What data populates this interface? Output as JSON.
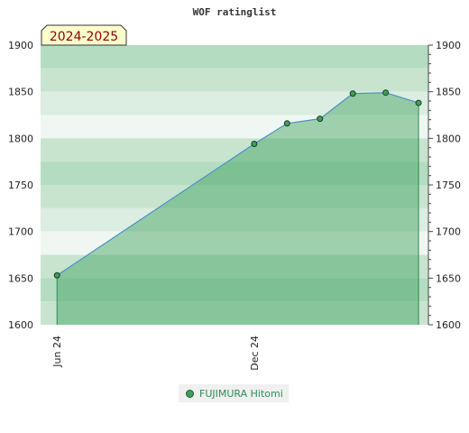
{
  "chart_data": {
    "type": "area",
    "title": "WOF ratinglist",
    "season_label": "2024-2025",
    "ylim": [
      1600,
      1900
    ],
    "y_ticks": [
      1600,
      1650,
      1700,
      1750,
      1800,
      1850,
      1900
    ],
    "x_ticks": [
      {
        "label": "Jun 24",
        "month": 0
      },
      {
        "label": "Dec 24",
        "month": 6
      }
    ],
    "xlim_months": [
      -0.5,
      11.3
    ],
    "series": [
      {
        "name": "FUJIMURA Hitomi",
        "color": "#3aa05a",
        "points": [
          {
            "month": 0,
            "value": 1653
          },
          {
            "month": 6,
            "value": 1794
          },
          {
            "month": 7,
            "value": 1816
          },
          {
            "month": 8,
            "value": 1821
          },
          {
            "month": 9,
            "value": 1848
          },
          {
            "month": 10,
            "value": 1849
          },
          {
            "month": 11,
            "value": 1838
          }
        ]
      }
    ],
    "grid": true,
    "legend_position": "bottom-center"
  }
}
